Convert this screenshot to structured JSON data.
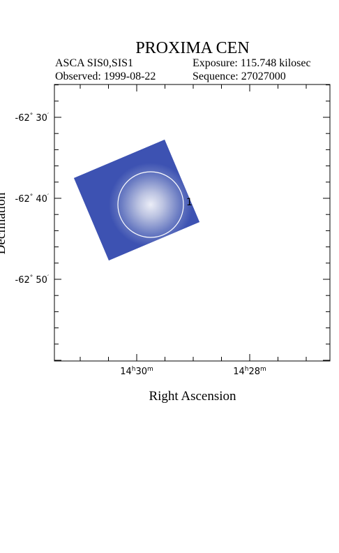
{
  "header": {
    "title": "PROXIMA CEN",
    "instrument": "ASCA SIS0,SIS1",
    "exposure": "Exposure: 115.748 kilosec",
    "observed": "Observed: 1999-08-22",
    "sequence": "Sequence: 27027000"
  },
  "axes": {
    "x_label": "Right Ascension",
    "y_label": "Declination",
    "x_ticks": [
      [
        "14",
        "h",
        "30",
        "m"
      ],
      [
        "14",
        "h",
        "28",
        "m"
      ]
    ],
    "y_ticks": [
      [
        "-62",
        "°",
        " 30",
        "′"
      ],
      [
        "-62",
        "°",
        " 40",
        "′"
      ],
      [
        "-62",
        "°",
        " 50",
        "′"
      ]
    ]
  },
  "region": {
    "label": "1"
  }
}
